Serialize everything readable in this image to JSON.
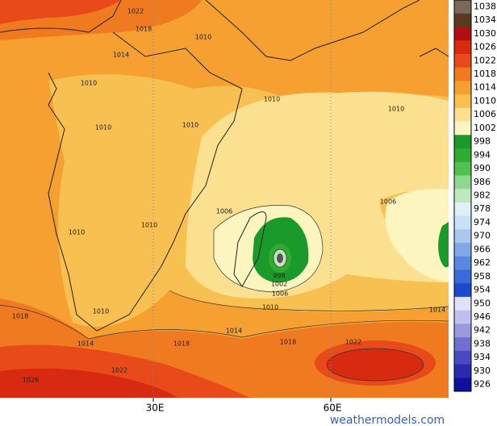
{
  "map": {
    "contour_labels": [
      "1022",
      "1018",
      "1010",
      "1014",
      "1010",
      "1010",
      "1010",
      "1010",
      "1010",
      "1006",
      "1006",
      "1010",
      "1010",
      "998",
      "1002",
      "1006",
      "1010",
      "1010",
      "1014",
      "1018",
      "1014",
      "1018",
      "1018",
      "1022",
      "1022",
      "1014",
      "1026"
    ],
    "longitude_labels": [
      "30E",
      "60E"
    ],
    "watermark": "weathermodels.com",
    "colorbar": [
      {
        "label": "1038",
        "color": "#7a6a5a"
      },
      {
        "label": "1034",
        "color": "#5a3a20"
      },
      {
        "label": "1030",
        "color": "#b01010"
      },
      {
        "label": "1026",
        "color": "#d82a10"
      },
      {
        "label": "1022",
        "color": "#e84a1a"
      },
      {
        "label": "1018",
        "color": "#f07a20"
      },
      {
        "label": "1014",
        "color": "#f5a030"
      },
      {
        "label": "1010",
        "color": "#f8c050"
      },
      {
        "label": "1006",
        "color": "#fbe090"
      },
      {
        "label": "1002",
        "color": "#fdf5c0"
      },
      {
        "label": "998",
        "color": "#1a9a2a"
      },
      {
        "label": "994",
        "color": "#30aa30"
      },
      {
        "label": "990",
        "color": "#50c050"
      },
      {
        "label": "986",
        "color": "#90d890"
      },
      {
        "label": "982",
        "color": "#c0e8c0"
      },
      {
        "label": "978",
        "color": "#e0f0f8"
      },
      {
        "label": "974",
        "color": "#c8e0f8"
      },
      {
        "label": "970",
        "color": "#a8c8f0"
      },
      {
        "label": "966",
        "color": "#80a8e8"
      },
      {
        "label": "962",
        "color": "#5888e0"
      },
      {
        "label": "958",
        "color": "#3a6ad8"
      },
      {
        "label": "954",
        "color": "#1a4ad0"
      },
      {
        "label": "950",
        "color": "#e0e0f8"
      },
      {
        "label": "946",
        "color": "#c0c0f0"
      },
      {
        "label": "942",
        "color": "#9a9ae0"
      },
      {
        "label": "938",
        "color": "#7070d0"
      },
      {
        "label": "934",
        "color": "#4a4ac0"
      },
      {
        "label": "930",
        "color": "#2a2ab0"
      },
      {
        "label": "926",
        "color": "#1010a0"
      }
    ]
  }
}
